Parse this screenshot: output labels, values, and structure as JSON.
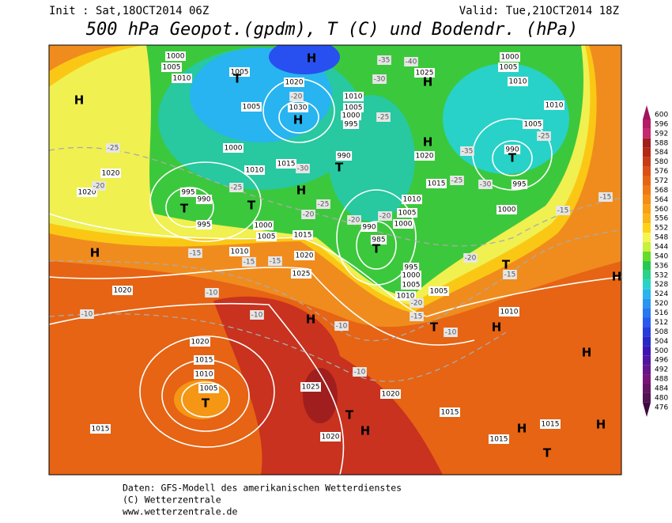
{
  "header": {
    "init": "Init : Sat,18OCT2014 06Z",
    "valid": "Valid: Tue,21OCT2014 18Z",
    "title": "500 hPa Geopot.(gpdm), T (C) und Bodendr. (hPa)"
  },
  "map": {
    "centers": [
      "H",
      "H",
      "H",
      "H",
      "H",
      "T",
      "T",
      "T",
      "T",
      "T",
      "H",
      "T",
      "T",
      "H",
      "H",
      "T",
      "T",
      "H",
      "T",
      "H",
      "H",
      "T",
      "H",
      "H",
      "H"
    ],
    "isobars": [
      1025,
      1020,
      1020,
      1020,
      1020,
      1015,
      1010,
      1005,
      1015,
      1020,
      1025,
      1020,
      1015,
      1015,
      1015,
      1010,
      1005,
      1000,
      1010,
      1005,
      1000,
      990,
      985,
      995,
      1000,
      1005,
      1010,
      990,
      1020,
      1015,
      990,
      995,
      1005,
      1010,
      1010,
      1005,
      1000,
      1025,
      1010,
      1005,
      1000,
      995,
      1020,
      1030,
      1005,
      1000,
      1005,
      1010,
      1005,
      1000,
      1010,
      1015,
      995,
      990,
      995,
      1000,
      1005,
      1015,
      1010,
      1020,
      1025
    ],
    "temperatures": [
      -25,
      -20,
      -25,
      -20,
      -25,
      -20,
      -20,
      -15,
      -15,
      -15,
      -10,
      -10,
      -10,
      -10,
      -10,
      -20,
      -15,
      -10,
      -20,
      -15,
      -15,
      -15,
      -25,
      -35,
      -25,
      -30,
      -30,
      -30,
      -35,
      -40,
      -25,
      -20
    ]
  },
  "colorbar": {
    "ticks": [
      600,
      596,
      592,
      588,
      584,
      580,
      576,
      572,
      568,
      564,
      560,
      556,
      552,
      548,
      544,
      540,
      536,
      532,
      528,
      524,
      520,
      516,
      512,
      508,
      504,
      500,
      496,
      492,
      488,
      484,
      480,
      476
    ],
    "colors": [
      "#a01460",
      "#b41e64",
      "#c8286e",
      "#a01e1e",
      "#b42814",
      "#c83c14",
      "#dc5014",
      "#e66414",
      "#f07814",
      "#f58c14",
      "#faa014",
      "#fab414",
      "#ffd214",
      "#f5f550",
      "#c8f03c",
      "#64dc28",
      "#28c850",
      "#28d28c",
      "#28d2c8",
      "#28b4f0",
      "#2896f0",
      "#2878f0",
      "#285af0",
      "#283cdc",
      "#2828c8",
      "#3c14b4",
      "#5014a0",
      "#64148c",
      "#781478",
      "#641464",
      "#501450",
      "#3c0a3c"
    ]
  },
  "footer": [
    "Daten: GFS-Modell des amerikanischen Wetterdienstes",
    "(C) Wetterzentrale",
    "www.wetterzentrale.de"
  ]
}
